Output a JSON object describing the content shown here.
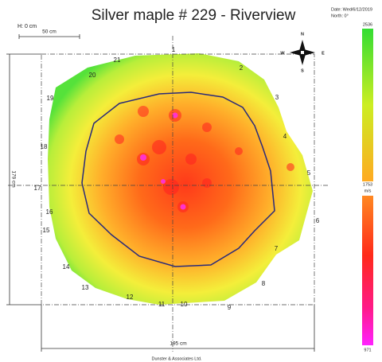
{
  "title": "Silver maple # 229 - Riverview",
  "meta": {
    "date": "Date: Wed/6/12/2019",
    "north": "North: 0°"
  },
  "height": "H: 0 cm",
  "scale_bar": "50 cm",
  "dimensions": {
    "height": "179 cm",
    "width": "195 cm"
  },
  "compass": {
    "n": "N",
    "e": "E",
    "s": "S",
    "w": "W"
  },
  "sensors": [
    "1",
    "2",
    "3",
    "4",
    "5",
    "6",
    "7",
    "8",
    "9",
    "10",
    "11",
    "12",
    "13",
    "14",
    "15",
    "16",
    "17",
    "18",
    "19",
    "20",
    "21"
  ],
  "color_scale": {
    "max": "2536",
    "mid": "1753",
    "unit": "m/s",
    "min": "971"
  },
  "footer": "Dunster & Associates Ltd."
}
